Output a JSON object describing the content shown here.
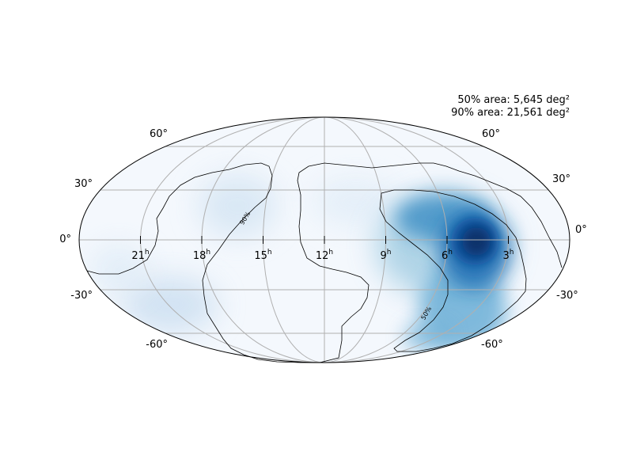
{
  "map": {
    "projection": "mollweide",
    "colormap": "Blues",
    "ra_tick_labels": [
      {
        "hours": 21,
        "label": "21",
        "unit": "h"
      },
      {
        "hours": 18,
        "label": "18",
        "unit": "h"
      },
      {
        "hours": 15,
        "label": "15",
        "unit": "h"
      },
      {
        "hours": 12,
        "label": "12",
        "unit": "h"
      },
      {
        "hours": 9,
        "label": "9",
        "unit": "h"
      },
      {
        "hours": 6,
        "label": "6",
        "unit": "h"
      },
      {
        "hours": 3,
        "label": "3",
        "unit": "h"
      }
    ],
    "dec_tick_labels": [
      {
        "deg": 60,
        "label": "60°"
      },
      {
        "deg": 30,
        "label": "30°"
      },
      {
        "deg": 0,
        "label": "0°"
      },
      {
        "deg": -30,
        "label": "-30°"
      },
      {
        "deg": -60,
        "label": "-60°"
      }
    ],
    "contours": [
      {
        "label": "90%",
        "color": "#000000"
      },
      {
        "label": "50%",
        "color": "#000000"
      }
    ],
    "credible_area_50": "50% area: 5,645 deg²",
    "credible_area_90": "90% area: 21,561 deg²",
    "colors": {
      "grid": "#b0b0b0",
      "outline": "#000000",
      "low": "#f7fbff",
      "high": "#08306b"
    }
  }
}
